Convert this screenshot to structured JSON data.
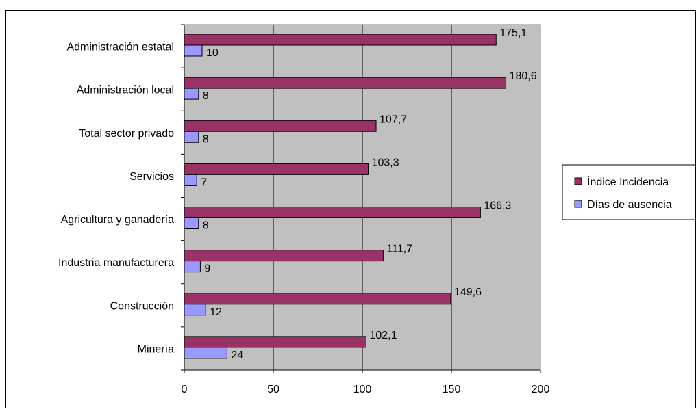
{
  "chart_data": {
    "type": "bar",
    "orientation": "horizontal",
    "title": "",
    "xlabel": "",
    "ylabel": "",
    "categories": [
      "Administración estatal",
      "Administración local",
      "Total sector privado",
      "Servicios",
      "Agricultura y ganadería",
      "Industria manufacturera",
      "Construcción",
      "Minería"
    ],
    "series": [
      {
        "name": "Índice Incidencia",
        "color": "#993366",
        "values": [
          175.1,
          180.6,
          107.7,
          103.3,
          166.3,
          111.7,
          149.6,
          102.1
        ],
        "labels": [
          "175,1",
          "180,6",
          "107,7",
          "103,3",
          "166,3",
          "111,7",
          "149,6",
          "102,1"
        ]
      },
      {
        "name": "Días de ausencia",
        "color": "#9999ff",
        "values": [
          10,
          8,
          8,
          7,
          8,
          9,
          12,
          24
        ],
        "labels": [
          "10",
          "8",
          "8",
          "7",
          "8",
          "9",
          "12",
          "24"
        ]
      }
    ],
    "xlim": [
      0,
      200
    ],
    "xticks": [
      "0",
      "50",
      "100",
      "150",
      "200"
    ],
    "xtick_values": [
      0,
      50,
      100,
      150,
      200
    ],
    "grid": true,
    "plot_background": "#c0c0c0",
    "legend_position": "right"
  }
}
